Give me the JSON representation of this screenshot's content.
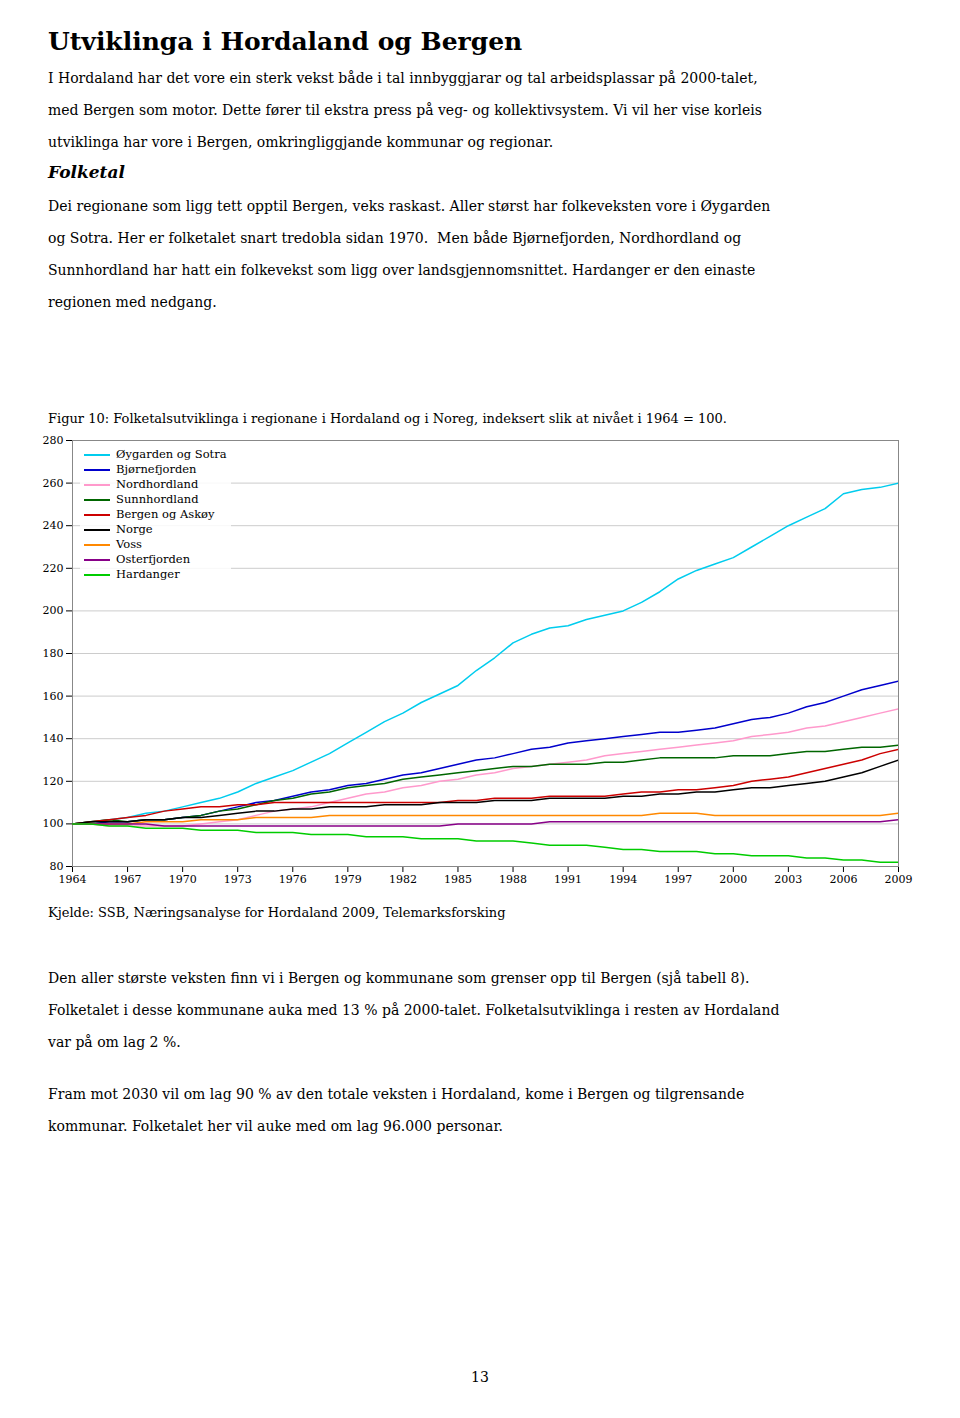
{
  "page": {
    "title": "Utviklinga i Hordaland og Bergen",
    "para1_lines": [
      "I Hordaland har det vore ein sterk vekst både i tal innbyggjarar og tal arbeidsplassar på 2000-talet,",
      "med Bergen som motor. Dette fører til ekstra press på veg- og kollektivsystem. Vi vil her vise korleis",
      "utviklinga har vore i Bergen, omkringliggjande kommunar og regionar."
    ],
    "section_title": "Folketal",
    "para2_lines": [
      "Dei regionane som ligg tett opptil Bergen, veks raskast. Aller størst har folkeveksten vore i Øygarden",
      "og Sotra. Her er folketalet snart tredobla sidan 1970.  Men både Bjørnefjorden, Nordhordland og",
      "Sunnhordland har hatt ein folkevekst som ligg over landsgjennomsnittet. Hardanger er den einaste",
      "regionen med nedgang."
    ],
    "para3_lines": [
      "Den aller største veksten finn vi i Bergen og kommunane som grenser opp til Bergen (sjå tabell 8).",
      "Folketalet i desse kommunane auka med 13 % på 2000-talet. Folketalsutviklinga i resten av Hordaland",
      "var på om lag 2 %."
    ],
    "para4_lines": [
      "Fram mot 2030 vil om lag 90 % av den totale veksten i Hordaland, kome i Bergen og tilgrensande",
      "kommunar. Folketalet her vil auke med om lag 96.000 personar."
    ],
    "page_number": "13"
  },
  "chart_data": {
    "type": "line",
    "title": "Figur 10: Folketalsutviklinga i regionane i Hordaland og i Noreg, indeksert slik at nivået i 1964 = 100.",
    "source": "Kjelde: SSB, Næringsanalyse for Hordaland 2009, Telemarksforsking",
    "x": [
      1964,
      1965,
      1966,
      1967,
      1968,
      1969,
      1970,
      1971,
      1972,
      1973,
      1974,
      1975,
      1976,
      1977,
      1978,
      1979,
      1980,
      1981,
      1982,
      1983,
      1984,
      1985,
      1986,
      1987,
      1988,
      1989,
      1990,
      1991,
      1992,
      1993,
      1994,
      1995,
      1996,
      1997,
      1998,
      1999,
      2000,
      2001,
      2002,
      2003,
      2004,
      2005,
      2006,
      2007,
      2008,
      2009
    ],
    "xlim": [
      1964,
      2009
    ],
    "xticks": [
      1964,
      1967,
      1970,
      1973,
      1976,
      1979,
      1982,
      1985,
      1988,
      1991,
      1994,
      1997,
      2000,
      2003,
      2006,
      2009
    ],
    "ylim": [
      80,
      280
    ],
    "yticks": [
      80,
      100,
      120,
      140,
      160,
      180,
      200,
      220,
      240,
      260,
      280
    ],
    "grid": true,
    "legend": "upper left",
    "series": [
      {
        "name": "Øygarden og Sotra",
        "color": "#00CCEE",
        "values": [
          100,
          101,
          102,
          103,
          105,
          106,
          108,
          110,
          112,
          115,
          119,
          122,
          125,
          129,
          133,
          138,
          143,
          148,
          152,
          157,
          161,
          165,
          172,
          178,
          185,
          189,
          192,
          193,
          196,
          198,
          200,
          204,
          209,
          215,
          219,
          222,
          225,
          230,
          235,
          240,
          244,
          248,
          255,
          257,
          258,
          260
        ]
      },
      {
        "name": "Bjørnefjorden",
        "color": "#0000CC",
        "values": [
          100,
          100,
          101,
          101,
          102,
          102,
          103,
          104,
          106,
          108,
          110,
          111,
          113,
          115,
          116,
          118,
          119,
          121,
          123,
          124,
          126,
          128,
          130,
          131,
          133,
          135,
          136,
          138,
          139,
          140,
          141,
          142,
          143,
          143,
          144,
          145,
          147,
          149,
          150,
          152,
          155,
          157,
          160,
          163,
          165,
          167
        ]
      },
      {
        "name": "Nordhordland",
        "color": "#FF99CC",
        "values": [
          100,
          100,
          99,
          99,
          99,
          99,
          99,
          100,
          101,
          102,
          104,
          106,
          107,
          108,
          110,
          112,
          114,
          115,
          117,
          118,
          120,
          121,
          123,
          124,
          126,
          127,
          128,
          129,
          130,
          132,
          133,
          134,
          135,
          136,
          137,
          138,
          139,
          141,
          142,
          143,
          145,
          146,
          148,
          150,
          152,
          154
        ]
      },
      {
        "name": "Sunnhordland",
        "color": "#006600",
        "values": [
          100,
          101,
          102,
          101,
          102,
          102,
          103,
          104,
          106,
          107,
          109,
          111,
          112,
          114,
          115,
          117,
          118,
          119,
          121,
          122,
          123,
          124,
          125,
          126,
          127,
          127,
          128,
          128,
          128,
          129,
          129,
          130,
          131,
          131,
          131,
          131,
          132,
          132,
          132,
          133,
          134,
          134,
          135,
          136,
          136,
          137
        ]
      },
      {
        "name": "Bergen og Askøy",
        "color": "#CC0000",
        "values": [
          100,
          101,
          102,
          103,
          104,
          106,
          107,
          108,
          108,
          109,
          109,
          110,
          110,
          110,
          110,
          110,
          110,
          110,
          110,
          110,
          110,
          111,
          111,
          112,
          112,
          112,
          113,
          113,
          113,
          113,
          114,
          115,
          115,
          116,
          116,
          117,
          118,
          120,
          121,
          122,
          124,
          126,
          128,
          130,
          133,
          135
        ]
      },
      {
        "name": "Norge",
        "color": "#000000",
        "values": [
          100,
          101,
          101,
          101,
          102,
          102,
          103,
          103,
          104,
          105,
          106,
          106,
          107,
          107,
          108,
          108,
          108,
          109,
          109,
          109,
          110,
          110,
          110,
          111,
          111,
          111,
          112,
          112,
          112,
          112,
          113,
          113,
          114,
          114,
          115,
          115,
          116,
          117,
          117,
          118,
          119,
          120,
          122,
          124,
          127,
          130
        ]
      },
      {
        "name": "Voss",
        "color": "#FF8800",
        "values": [
          100,
          100,
          100,
          100,
          101,
          101,
          101,
          102,
          102,
          102,
          103,
          103,
          103,
          103,
          104,
          104,
          104,
          104,
          104,
          104,
          104,
          104,
          104,
          104,
          104,
          104,
          104,
          104,
          104,
          104,
          104,
          104,
          105,
          105,
          105,
          104,
          104,
          104,
          104,
          104,
          104,
          104,
          104,
          104,
          104,
          105
        ]
      },
      {
        "name": "Osterfjorden",
        "color": "#880088",
        "values": [
          100,
          100,
          100,
          100,
          100,
          99,
          99,
          99,
          99,
          99,
          99,
          99,
          99,
          99,
          99,
          99,
          99,
          99,
          99,
          99,
          99,
          100,
          100,
          100,
          100,
          100,
          101,
          101,
          101,
          101,
          101,
          101,
          101,
          101,
          101,
          101,
          101,
          101,
          101,
          101,
          101,
          101,
          101,
          101,
          101,
          102
        ]
      },
      {
        "name": "Hardanger",
        "color": "#00CC00",
        "values": [
          100,
          100,
          99,
          99,
          98,
          98,
          98,
          97,
          97,
          97,
          96,
          96,
          96,
          95,
          95,
          95,
          94,
          94,
          94,
          93,
          93,
          93,
          92,
          92,
          92,
          91,
          90,
          90,
          90,
          89,
          88,
          88,
          87,
          87,
          87,
          86,
          86,
          85,
          85,
          85,
          84,
          84,
          83,
          83,
          82,
          82
        ]
      }
    ]
  }
}
